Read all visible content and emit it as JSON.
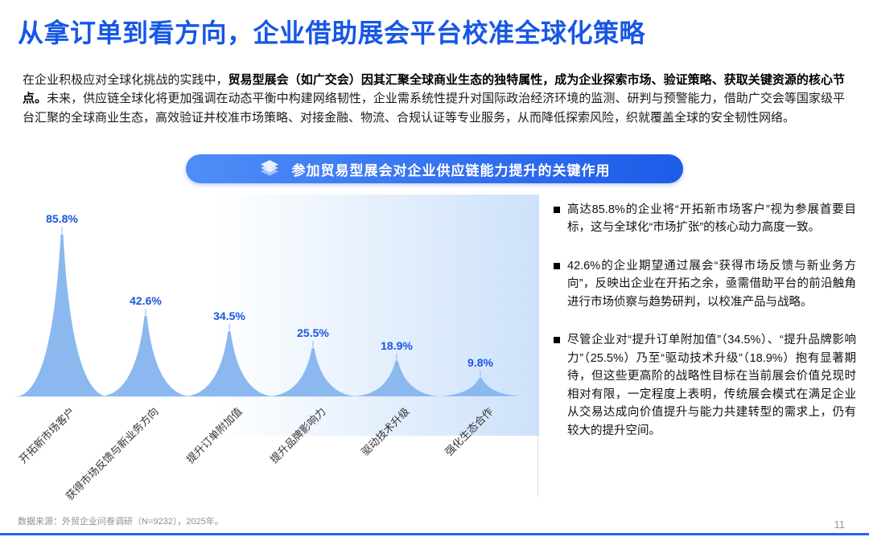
{
  "header": {
    "title": "从拿订单到看方向，企业借助展会平台校准全球化策略"
  },
  "intro": {
    "lead": "在企业积极应对全球化挑战的实践中，",
    "bold": "贸易型展会（如广交会）因其汇聚全球商业生态的独特属性，成为企业探索市场、验证策略、获取关键资源的核心节点。",
    "rest": "未来，供应链全球化将更加强调在动态平衡中构建网络韧性，企业需系统性提升对国际政治经济环境的监测、研判与预警能力，借助广交会等国家级平台汇聚的全球商业生态，高效验证并校准市场策略、对接金融、物流、合规认证等专业服务，从而降低探索风险，织就覆盖全球的安全韧性网络。"
  },
  "banner": {
    "label": "参加贸易型展会对企业供应链能力提升的关键作用"
  },
  "chart_data": {
    "type": "area",
    "title": "参加贸易型展会对企业供应链能力提升的关键作用",
    "categories": [
      "开拓新市场客户",
      "获得市场反馈与新业务方向",
      "提升订单附加值",
      "提升品牌影响力",
      "驱动技术升级",
      "强化生态合作"
    ],
    "values": [
      85.8,
      42.6,
      34.5,
      25.5,
      18.9,
      9.8
    ],
    "value_labels": [
      "85.8%",
      "42.6%",
      "34.5%",
      "25.5%",
      "18.9%",
      "9.8%"
    ],
    "xlabel": "",
    "ylabel": "",
    "ylim": [
      0,
      100
    ],
    "grid": "off",
    "legend": "none",
    "peak_color": "#8ab8ef",
    "label_color": "#1a56e0"
  },
  "bullets": [
    "高达85.8%的企业将“开拓新市场客户”视为参展首要目标，这与全球化“市场扩张”的核心动力高度一致。",
    "42.6%的企业期望通过展会“获得市场反馈与新业务方向”，反映出企业在开拓之余，亟需借助平台的前沿触角进行市场侦察与趋势研判，以校准产品与战略。",
    "尽管企业对“提升订单附加值”（34.5%）、“提升品牌影响力”（25.5%）乃至“驱动技术升级”（18.9%）抱有显著期待，但这些更高阶的战略性目标在当前展会价值兑现时相对有限，一定程度上表明，传统展会模式在满足企业从交易达成向价值提升与能力共建转型的需求上，仍有较大的提升空间。"
  ],
  "footer": {
    "source": "数据来源：外贸企业问卷调研（N=9232），2025年。",
    "page_number": "11"
  },
  "colors": {
    "accent": "#1657e5",
    "banner_start": "#4f8df8",
    "banner_end": "#1e5be8",
    "peak": "#8ab8ef",
    "value_label": "#1a56e0",
    "bottom_bar": "#2563eb"
  }
}
